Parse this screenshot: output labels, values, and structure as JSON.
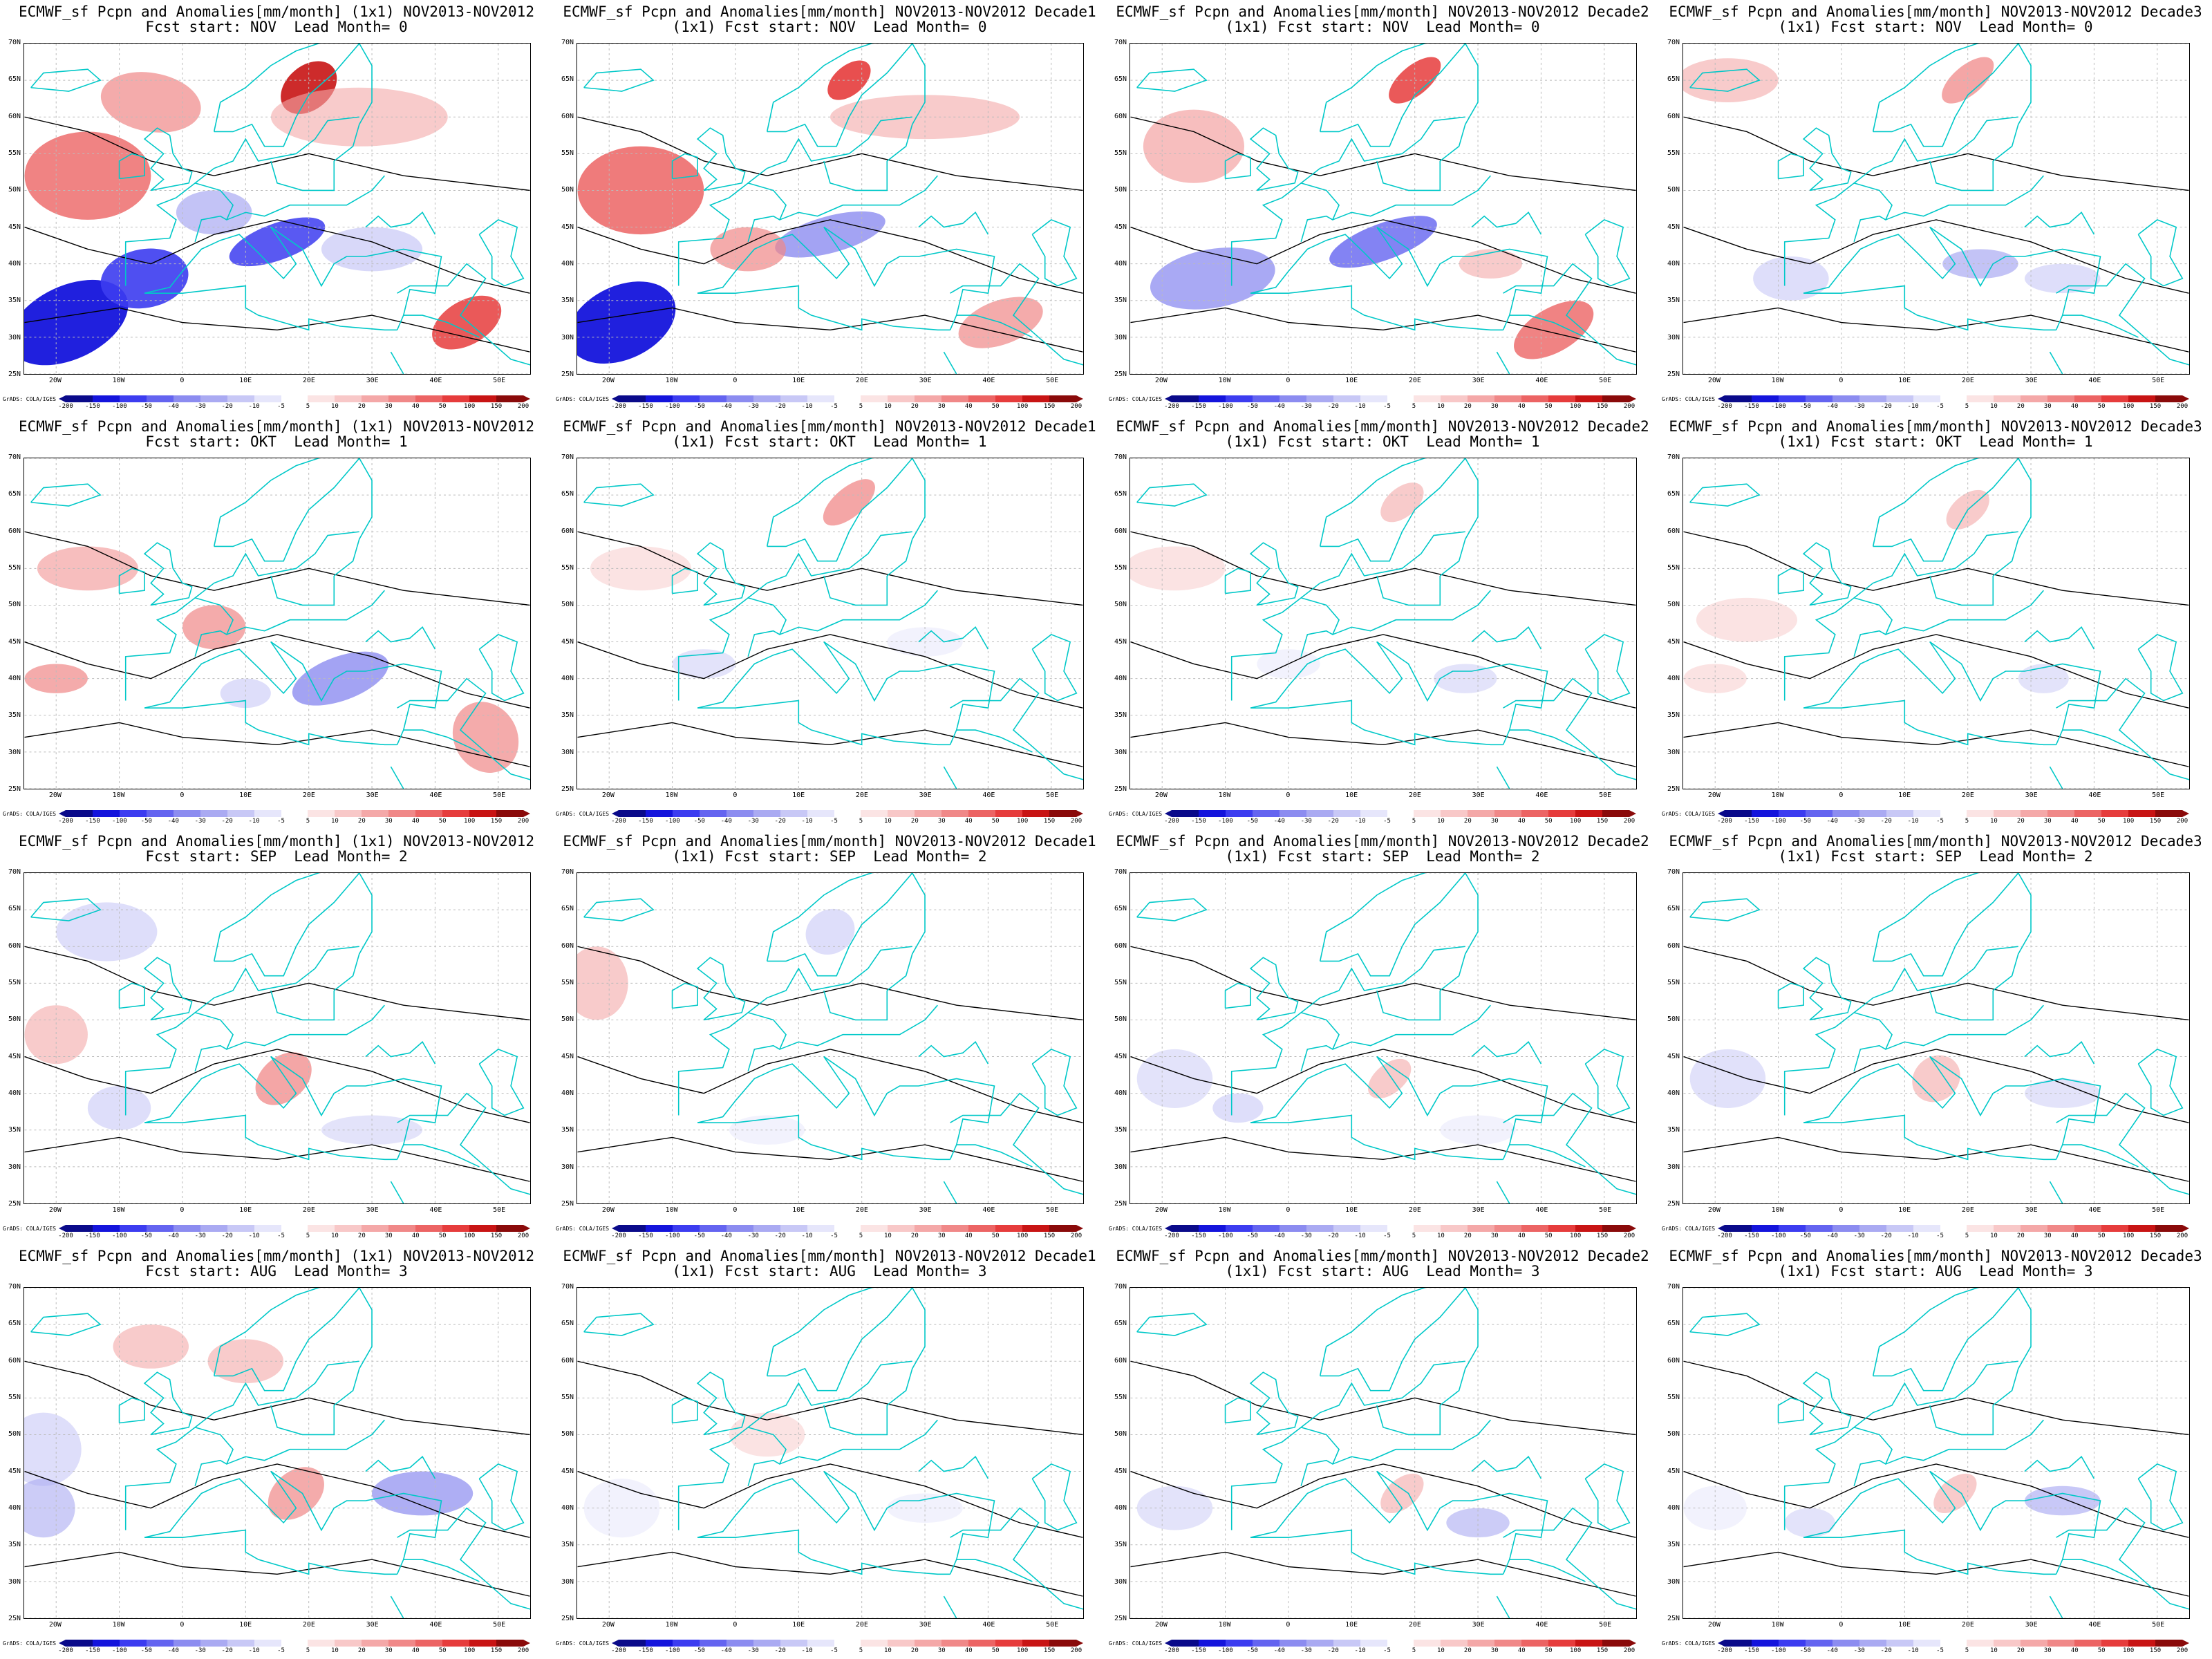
{
  "panels": [
    {
      "title1": "ECMWF_sf Pcpn and Anomalies[mm/month] (1x1) NOV2013-NOV2012",
      "title2": "Fcst start: NOV  Lead Month= 0"
    },
    {
      "title1": "ECMWF_sf Pcpn and Anomalies[mm/month] NOV2013-NOV2012 Decade1",
      "title2": "(1x1) Fcst start: NOV  Lead Month= 0"
    },
    {
      "title1": "ECMWF_sf Pcpn and Anomalies[mm/month] NOV2013-NOV2012 Decade2",
      "title2": "(1x1) Fcst start: NOV  Lead Month= 0"
    },
    {
      "title1": "ECMWF_sf Pcpn and Anomalies[mm/month] NOV2013-NOV2012 Decade3",
      "title2": "(1x1) Fcst start: NOV  Lead Month= 0"
    },
    {
      "title1": "ECMWF_sf Pcpn and Anomalies[mm/month] (1x1) NOV2013-NOV2012",
      "title2": "Fcst start: OKT  Lead Month= 1"
    },
    {
      "title1": "ECMWF_sf Pcpn and Anomalies[mm/month] NOV2013-NOV2012 Decade1",
      "title2": "(1x1) Fcst start: OKT  Lead Month= 1"
    },
    {
      "title1": "ECMWF_sf Pcpn and Anomalies[mm/month] NOV2013-NOV2012 Decade2",
      "title2": "(1x1) Fcst start: OKT  Lead Month= 1"
    },
    {
      "title1": "ECMWF_sf Pcpn and Anomalies[mm/month] NOV2013-NOV2012 Decade3",
      "title2": "(1x1) Fcst start: OKT  Lead Month= 1"
    },
    {
      "title1": "ECMWF_sf Pcpn and Anomalies[mm/month] (1x1) NOV2013-NOV2012",
      "title2": "Fcst start: SEP  Lead Month= 2"
    },
    {
      "title1": "ECMWF_sf Pcpn and Anomalies[mm/month] NOV2013-NOV2012 Decade1",
      "title2": "(1x1) Fcst start: SEP  Lead Month= 2"
    },
    {
      "title1": "ECMWF_sf Pcpn and Anomalies[mm/month] NOV2013-NOV2012 Decade2",
      "title2": "(1x1) Fcst start: SEP  Lead Month= 2"
    },
    {
      "title1": "ECMWF_sf Pcpn and Anomalies[mm/month] NOV2013-NOV2012 Decade3",
      "title2": "(1x1) Fcst start: SEP  Lead Month= 2"
    },
    {
      "title1": "ECMWF_sf Pcpn and Anomalies[mm/month] (1x1) NOV2013-NOV2012",
      "title2": "Fcst start: AUG  Lead Month= 3"
    },
    {
      "title1": "ECMWF_sf Pcpn and Anomalies[mm/month] NOV2013-NOV2012 Decade1",
      "title2": "(1x1) Fcst start: AUG  Lead Month= 3"
    },
    {
      "title1": "ECMWF_sf Pcpn and Anomalies[mm/month] NOV2013-NOV2012 Decade2",
      "title2": "(1x1) Fcst start: AUG  Lead Month= 3"
    },
    {
      "title1": "ECMWF_sf Pcpn and Anomalies[mm/month] NOV2013-NOV2012 Decade3",
      "title2": "(1x1) Fcst start: AUG  Lead Month= 3"
    }
  ],
  "map_axes": {
    "lat_labels": [
      "70N",
      "65N",
      "60N",
      "55N",
      "50N",
      "45N",
      "40N",
      "35N",
      "30N",
      "25N"
    ],
    "lon_labels": [
      "20W",
      "10W",
      "0",
      "10E",
      "20E",
      "30E",
      "40E",
      "50E"
    ],
    "lon_range": [
      -25,
      55
    ],
    "lat_range": [
      25,
      70
    ]
  },
  "credit": "GrADS: COLA/IGES",
  "colorbar": {
    "labels": [
      "-200",
      "-150",
      "-100",
      "-50",
      "-40",
      "-30",
      "-20",
      "-10",
      "-5",
      "5",
      "10",
      "20",
      "30",
      "40",
      "50",
      "100",
      "150",
      "200"
    ],
    "colors": [
      "#0a0a8a",
      "#1414dc",
      "#3c3cf0",
      "#6464f0",
      "#8c8cf0",
      "#aaaaf2",
      "#c8c8f6",
      "#e6e6fb",
      "#ffffff",
      "#fbe4e4",
      "#f8c8c8",
      "#f4a8a8",
      "#f08888",
      "#ec6464",
      "#e63c3c",
      "#c81414",
      "#8a0a0a"
    ]
  },
  "style": {
    "coastline_color": "#00c8c8",
    "contour_color": "#000000",
    "positive_anomaly_color": "#e63c3c",
    "negative_anomaly_color": "#3c3cf0"
  }
}
